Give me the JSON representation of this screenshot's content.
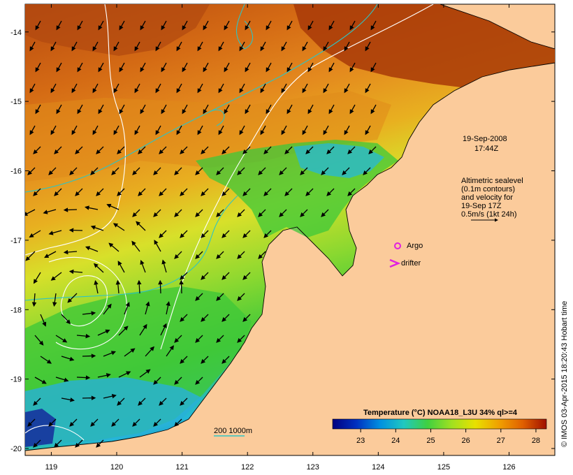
{
  "map": {
    "lon_ticks": [
      "119",
      "120",
      "121",
      "122",
      "123",
      "124",
      "125",
      "126"
    ],
    "lat_ticks": [
      "-14",
      "-15",
      "-16",
      "-17",
      "-18",
      "-19",
      "-20"
    ],
    "lon_range": [
      118.6,
      126.7
    ],
    "lat_range": [
      -13.6,
      -20.1
    ],
    "colors": {
      "land": "#fbcb9b",
      "warm": "#b84a10",
      "mid": "#e48a1e",
      "cool": "#d8e02a",
      "green": "#3ec83a",
      "cyan": "#25b8d8",
      "deep": "#2040a0",
      "isobath": "#2ec4c4",
      "contour": "#ffffff"
    }
  },
  "annotations": {
    "date": "19-Sep-2008",
    "time": "17:44Z",
    "legend_lines": [
      "Altimetric sealevel",
      "(0.1m contours)",
      "and velocity for",
      "19-Sep 17Z",
      "0.5m/s (1kt 24h)"
    ],
    "argo_label": "Argo",
    "drifter_label": "drifter",
    "isobath_label": "200  1000m",
    "credit": "© IMOS 03-Apr-2015 18:20:43 Hobart time"
  },
  "colorbar": {
    "title": "Temperature (°C) NOAA18_L3U 34% ql>=4",
    "ticks": [
      "23",
      "24",
      "25",
      "26",
      "27",
      "28"
    ],
    "stops": [
      "#000080",
      "#0030c0",
      "#0090e0",
      "#20c8c0",
      "#40d040",
      "#a0e020",
      "#e8e000",
      "#f0a000",
      "#e06000",
      "#a01000"
    ]
  }
}
